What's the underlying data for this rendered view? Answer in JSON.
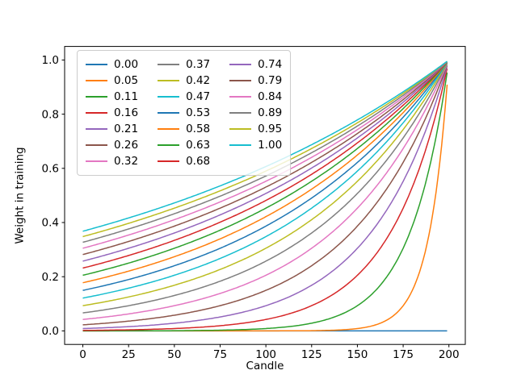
{
  "figure": {
    "background": "#ffffff"
  },
  "chart_data": {
    "type": "line",
    "title": "",
    "xlabel": "Candle",
    "ylabel": "Weight in training",
    "xlim": [
      -9.95,
      208.95
    ],
    "ylim": [
      -0.05,
      1.05
    ],
    "xticks": [
      0,
      25,
      50,
      75,
      100,
      125,
      150,
      175,
      200
    ],
    "yticks": [
      0.0,
      0.2,
      0.4,
      0.6,
      0.8,
      1.0
    ],
    "grid": false,
    "x_range": {
      "start": 0,
      "end": 199,
      "step": 1
    },
    "t_norm": 200,
    "formula": "weight(t) = exp(-(1 - t/200)/p); for p = 0 weight(t) = 0",
    "legend": {
      "position": "upper left",
      "ncol": 3,
      "order": "column-major"
    },
    "line_width": 1.5,
    "series": [
      {
        "label": "0.00",
        "p": 0.0,
        "color": "#1f77b4"
      },
      {
        "label": "0.05",
        "p": 0.0526,
        "color": "#ff7f0e"
      },
      {
        "label": "0.11",
        "p": 0.1053,
        "color": "#2ca02c"
      },
      {
        "label": "0.16",
        "p": 0.1579,
        "color": "#d62728"
      },
      {
        "label": "0.21",
        "p": 0.2105,
        "color": "#9467bd"
      },
      {
        "label": "0.26",
        "p": 0.2632,
        "color": "#8c564b"
      },
      {
        "label": "0.32",
        "p": 0.3158,
        "color": "#e377c2"
      },
      {
        "label": "0.37",
        "p": 0.3684,
        "color": "#7f7f7f"
      },
      {
        "label": "0.42",
        "p": 0.4211,
        "color": "#bcbd22"
      },
      {
        "label": "0.47",
        "p": 0.4737,
        "color": "#17becf"
      },
      {
        "label": "0.53",
        "p": 0.5263,
        "color": "#1f77b4"
      },
      {
        "label": "0.58",
        "p": 0.5789,
        "color": "#ff7f0e"
      },
      {
        "label": "0.63",
        "p": 0.6316,
        "color": "#2ca02c"
      },
      {
        "label": "0.68",
        "p": 0.6842,
        "color": "#d62728"
      },
      {
        "label": "0.74",
        "p": 0.7368,
        "color": "#9467bd"
      },
      {
        "label": "0.79",
        "p": 0.7895,
        "color": "#8c564b"
      },
      {
        "label": "0.84",
        "p": 0.8421,
        "color": "#e377c2"
      },
      {
        "label": "0.89",
        "p": 0.8947,
        "color": "#7f7f7f"
      },
      {
        "label": "0.95",
        "p": 0.9474,
        "color": "#bcbd22"
      },
      {
        "label": "1.00",
        "p": 1.0,
        "color": "#17becf"
      }
    ]
  }
}
